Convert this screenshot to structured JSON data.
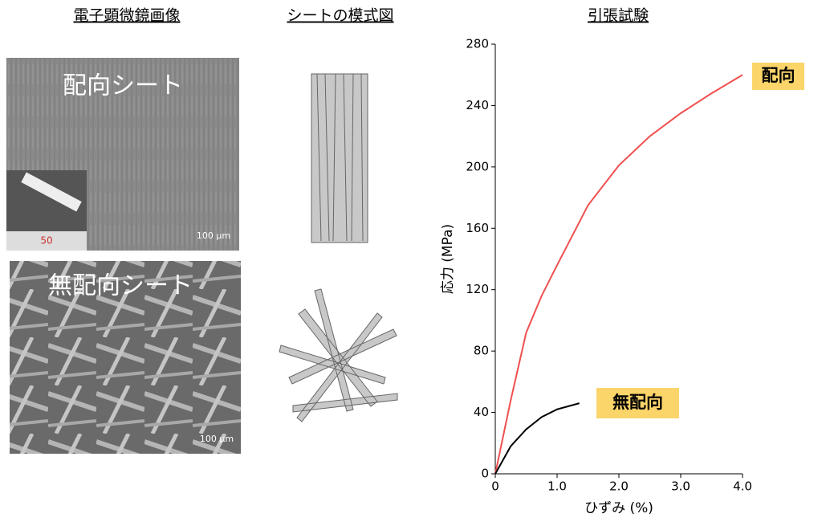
{
  "headers": {
    "sem": "電子顕微鏡画像",
    "schematic": "シートの模式図",
    "tensile": "引張試験"
  },
  "images": {
    "oriented": {
      "label": "配向シート",
      "scale": "100 µm",
      "ruler": "50"
    },
    "random": {
      "label": "無配向シート",
      "scale": "100 µm"
    }
  },
  "chart_data": {
    "type": "line",
    "xlabel": "ひずみ (%)",
    "ylabel": "応力 (MPa)",
    "xlim": [
      0,
      4.0
    ],
    "xticks": [
      0,
      {
        "value": 1,
        "label": "1.0"
      },
      {
        "value": 2,
        "label": "2.0"
      },
      {
        "value": 3,
        "label": "3.0"
      },
      {
        "value": 4,
        "label": "4.0"
      }
    ],
    "ylim": [
      0,
      280
    ],
    "yticks": [
      0,
      40,
      80,
      120,
      160,
      200,
      240,
      280
    ],
    "series": [
      {
        "name": "配向",
        "color": "#f05050",
        "x": [
          0,
          0.25,
          0.5,
          0.75,
          1.0,
          1.5,
          2.0,
          2.5,
          3.0,
          3.5,
          4.0
        ],
        "values": [
          0,
          48,
          92,
          116,
          136,
          175,
          201,
          220,
          235,
          248,
          260
        ]
      },
      {
        "name": "無配向",
        "color": "#000000",
        "x": [
          0,
          0.25,
          0.5,
          0.75,
          1.0,
          1.36
        ],
        "values": [
          0,
          18,
          29,
          37,
          42,
          46
        ]
      }
    ]
  }
}
